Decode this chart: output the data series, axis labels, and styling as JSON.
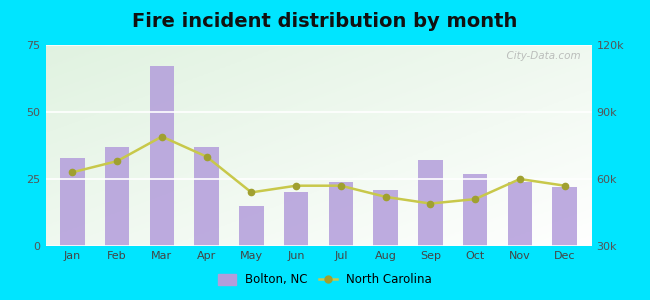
{
  "months": [
    "Jan",
    "Feb",
    "Mar",
    "Apr",
    "May",
    "Jun",
    "Jul",
    "Aug",
    "Sep",
    "Oct",
    "Nov",
    "Dec"
  ],
  "bolton_values": [
    33,
    37,
    67,
    37,
    15,
    20,
    24,
    21,
    32,
    27,
    24,
    22
  ],
  "nc_values": [
    63000,
    68000,
    79000,
    70000,
    54000,
    57000,
    57000,
    52000,
    49000,
    51000,
    60000,
    57000
  ],
  "bar_color": "#b39ddb",
  "line_color": "#c8c84a",
  "line_marker_color": "#a0a030",
  "bg_outer": "#00e5ff",
  "title": "Fire incident distribution by month",
  "title_fontsize": 14,
  "left_ylim": [
    0,
    75
  ],
  "left_yticks": [
    0,
    25,
    50,
    75
  ],
  "right_ylim": [
    30000,
    120000
  ],
  "right_yticks": [
    30000,
    60000,
    90000,
    120000
  ],
  "right_yticklabels": [
    "30k",
    "60k",
    "90k",
    "120k"
  ],
  "legend_bolton": "Bolton, NC",
  "legend_nc": "North Carolina",
  "watermark": "  City-Data.com"
}
